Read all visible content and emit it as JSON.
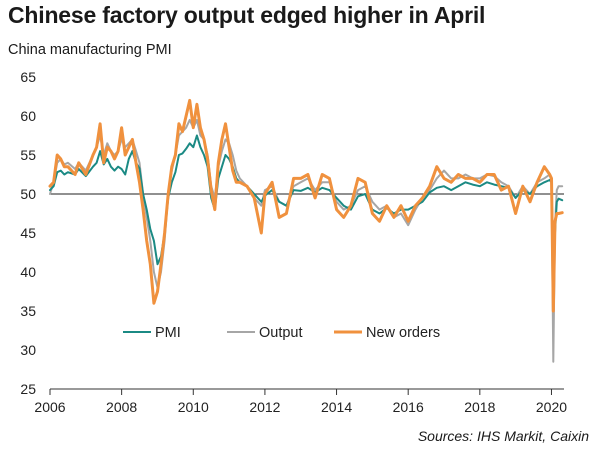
{
  "title": "Chinese factory output edged higher in April",
  "subtitle": "China manufacturing PMI",
  "source": "Sources: IHS Markit, Caixin",
  "chart_data": {
    "type": "line",
    "x_ticks": [
      "2006",
      "2008",
      "2010",
      "2012",
      "2014",
      "2016",
      "2018",
      "2020"
    ],
    "xlim": [
      2006,
      2020.35
    ],
    "ylim": [
      25,
      65
    ],
    "y_ticks": [
      25,
      30,
      35,
      40,
      45,
      50,
      55,
      60,
      65
    ],
    "reference_line": 50,
    "grid": false,
    "legend_placement": "bottom-center",
    "series": [
      {
        "name": "PMI",
        "color": "#1b8a84",
        "x": [
          2006.0,
          2006.1,
          2006.2,
          2006.3,
          2006.4,
          2006.5,
          2006.7,
          2006.8,
          2007.0,
          2007.2,
          2007.3,
          2007.4,
          2007.5,
          2007.6,
          2007.7,
          2007.8,
          2007.9,
          2008.0,
          2008.1,
          2008.2,
          2008.3,
          2008.4,
          2008.5,
          2008.6,
          2008.7,
          2008.8,
          2008.9,
          2009.0,
          2009.1,
          2009.2,
          2009.3,
          2009.4,
          2009.5,
          2009.6,
          2009.7,
          2009.8,
          2009.9,
          2010.0,
          2010.1,
          2010.2,
          2010.3,
          2010.4,
          2010.5,
          2010.6,
          2010.7,
          2010.8,
          2010.9,
          2011.0,
          2011.1,
          2011.2,
          2011.3,
          2011.5,
          2011.7,
          2011.9,
          2012.0,
          2012.2,
          2012.4,
          2012.6,
          2012.8,
          2013.0,
          2013.2,
          2013.4,
          2013.6,
          2013.8,
          2014.0,
          2014.2,
          2014.4,
          2014.6,
          2014.8,
          2015.0,
          2015.2,
          2015.4,
          2015.6,
          2015.8,
          2016.0,
          2016.2,
          2016.4,
          2016.6,
          2016.8,
          2017.0,
          2017.2,
          2017.4,
          2017.6,
          2017.8,
          2018.0,
          2018.2,
          2018.4,
          2018.6,
          2018.8,
          2019.0,
          2019.2,
          2019.4,
          2019.6,
          2019.8,
          2019.95,
          2020.0,
          2020.05,
          2020.1,
          2020.15,
          2020.2,
          2020.3
        ],
        "values": [
          50.5,
          51,
          52.8,
          53,
          52.5,
          52.8,
          52.5,
          53.2,
          52.3,
          53.5,
          54,
          55.5,
          53.8,
          54.5,
          53.5,
          53,
          53.5,
          53.2,
          52.5,
          54.5,
          55.5,
          54,
          53.3,
          50,
          48,
          45.5,
          44,
          41,
          42,
          45,
          49.5,
          51.5,
          52.8,
          55,
          55.2,
          55.8,
          56.5,
          56,
          57.5,
          56,
          55,
          53.5,
          49.5,
          48,
          52,
          53.5,
          55,
          54.5,
          53.5,
          52,
          51.5,
          51,
          50,
          49,
          49.8,
          50.5,
          49,
          48.5,
          50.5,
          50.4,
          50.8,
          50.2,
          50.8,
          50.5,
          49.5,
          48.5,
          48,
          49.7,
          50,
          48,
          47.5,
          48.2,
          47.5,
          48,
          48,
          48.5,
          49,
          50.2,
          50.8,
          51,
          50.5,
          51,
          51.5,
          51.2,
          51,
          51.5,
          51.2,
          51,
          50.8,
          49.5,
          50.5,
          50,
          51,
          51.5,
          51.8,
          51.5,
          40.3,
          45,
          49,
          49.4,
          49.2
        ]
      },
      {
        "name": "Output",
        "color": "#a6a6a6",
        "x": [
          2006.0,
          2006.1,
          2006.2,
          2006.3,
          2006.4,
          2006.5,
          2006.7,
          2006.8,
          2007.0,
          2007.2,
          2007.3,
          2007.4,
          2007.5,
          2007.6,
          2007.7,
          2007.8,
          2007.9,
          2008.0,
          2008.1,
          2008.2,
          2008.3,
          2008.4,
          2008.5,
          2008.6,
          2008.7,
          2008.8,
          2008.9,
          2009.0,
          2009.1,
          2009.2,
          2009.3,
          2009.4,
          2009.5,
          2009.6,
          2009.7,
          2009.8,
          2009.9,
          2010.0,
          2010.1,
          2010.2,
          2010.3,
          2010.4,
          2010.5,
          2010.6,
          2010.7,
          2010.8,
          2010.9,
          2011.0,
          2011.1,
          2011.2,
          2011.3,
          2011.5,
          2011.7,
          2011.9,
          2012.0,
          2012.2,
          2012.4,
          2012.6,
          2012.8,
          2013.0,
          2013.2,
          2013.4,
          2013.6,
          2013.8,
          2014.0,
          2014.2,
          2014.4,
          2014.6,
          2014.8,
          2015.0,
          2015.2,
          2015.4,
          2015.6,
          2015.8,
          2016.0,
          2016.2,
          2016.4,
          2016.6,
          2016.8,
          2017.0,
          2017.2,
          2017.4,
          2017.6,
          2017.8,
          2018.0,
          2018.2,
          2018.4,
          2018.6,
          2018.8,
          2019.0,
          2019.2,
          2019.4,
          2019.6,
          2019.8,
          2019.95,
          2020.0,
          2020.05,
          2020.1,
          2020.15,
          2020.2,
          2020.3
        ],
        "values": [
          50,
          51.5,
          54,
          54.5,
          53.8,
          54,
          53.2,
          54,
          53,
          55,
          56,
          57.5,
          55,
          56.5,
          55.5,
          55,
          55.5,
          57,
          56,
          56.5,
          57,
          55.5,
          54,
          50,
          47,
          44,
          40,
          38,
          40,
          44,
          50,
          53,
          55,
          57.5,
          58,
          58.5,
          59.5,
          58.5,
          59.5,
          57.5,
          57,
          55,
          51,
          49.5,
          53.5,
          55.5,
          57,
          56.5,
          55,
          53,
          52,
          51,
          49.5,
          48.5,
          50.5,
          51,
          49,
          48.5,
          51,
          51.5,
          52,
          50.5,
          51.5,
          51.5,
          49,
          48,
          48.5,
          50.5,
          51,
          49,
          48,
          48.5,
          47,
          47.5,
          46,
          48,
          49.5,
          50.5,
          52,
          53,
          52,
          52,
          52.5,
          52,
          52,
          52.5,
          52.3,
          51.5,
          51,
          49.5,
          51,
          50,
          51.5,
          52,
          52.5,
          51.5,
          28.5,
          46,
          50.5,
          51,
          51
        ]
      },
      {
        "name": "New orders",
        "color": "#f0913e",
        "x": [
          2006.0,
          2006.1,
          2006.2,
          2006.3,
          2006.4,
          2006.5,
          2006.7,
          2006.8,
          2007.0,
          2007.2,
          2007.3,
          2007.4,
          2007.5,
          2007.6,
          2007.7,
          2007.8,
          2007.9,
          2008.0,
          2008.1,
          2008.2,
          2008.3,
          2008.4,
          2008.5,
          2008.6,
          2008.7,
          2008.8,
          2008.9,
          2009.0,
          2009.1,
          2009.2,
          2009.3,
          2009.4,
          2009.5,
          2009.6,
          2009.7,
          2009.8,
          2009.9,
          2010.0,
          2010.1,
          2010.2,
          2010.3,
          2010.4,
          2010.5,
          2010.6,
          2010.7,
          2010.8,
          2010.9,
          2011.0,
          2011.1,
          2011.2,
          2011.3,
          2011.5,
          2011.7,
          2011.9,
          2012.0,
          2012.2,
          2012.4,
          2012.6,
          2012.8,
          2013.0,
          2013.2,
          2013.4,
          2013.6,
          2013.8,
          2014.0,
          2014.2,
          2014.4,
          2014.6,
          2014.8,
          2015.0,
          2015.2,
          2015.4,
          2015.6,
          2015.8,
          2016.0,
          2016.2,
          2016.4,
          2016.6,
          2016.8,
          2017.0,
          2017.2,
          2017.4,
          2017.6,
          2017.8,
          2018.0,
          2018.2,
          2018.4,
          2018.6,
          2018.8,
          2019.0,
          2019.2,
          2019.4,
          2019.6,
          2019.8,
          2019.95,
          2020.0,
          2020.05,
          2020.1,
          2020.15,
          2020.2,
          2020.3
        ],
        "values": [
          51,
          51.5,
          55,
          54.5,
          53.5,
          53.5,
          52.5,
          54,
          52.5,
          55,
          56,
          59,
          54,
          56,
          55.5,
          54.5,
          55.5,
          58.5,
          55,
          56,
          57,
          54,
          51.5,
          48,
          44,
          41,
          36,
          37.5,
          41,
          45,
          50,
          53.5,
          55,
          59,
          58,
          60,
          62,
          58.5,
          61.5,
          58.5,
          57,
          54.5,
          50.5,
          48,
          54,
          57,
          59,
          56,
          53,
          51.5,
          51.5,
          51,
          49.5,
          45,
          50,
          51.5,
          47,
          47.5,
          52,
          52,
          52.5,
          49.5,
          52.5,
          52,
          48,
          47,
          48.5,
          52,
          51.5,
          47.5,
          46.5,
          48.5,
          47,
          48.5,
          46.5,
          48.5,
          49.5,
          51,
          53.5,
          52,
          51.5,
          52.5,
          52,
          52,
          51.5,
          52.5,
          52.5,
          50.5,
          51,
          47.5,
          51,
          49,
          51.5,
          53.5,
          52.5,
          52,
          35,
          46.5,
          47.5,
          47.5,
          47.6
        ]
      }
    ]
  }
}
